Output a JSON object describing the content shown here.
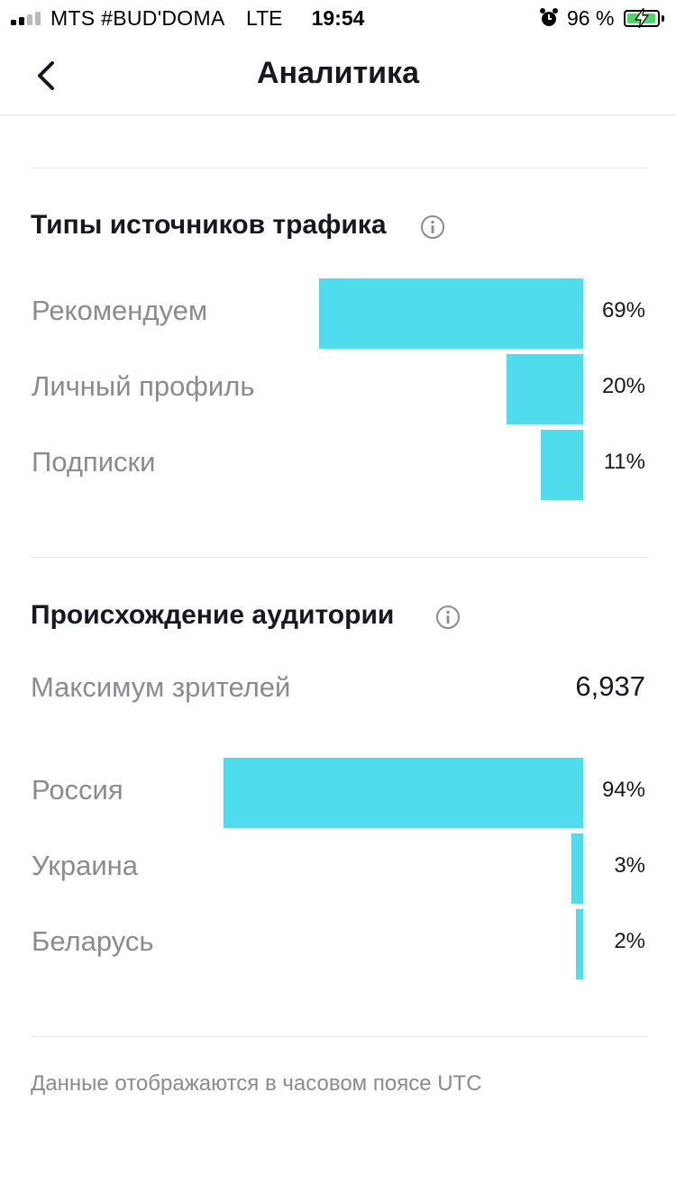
{
  "status_bar": {
    "carrier": "MTS #BUD'DOMA",
    "network": "LTE",
    "time": "19:54",
    "battery_percent": "96 %",
    "battery_level": 0.96,
    "icons": [
      "signal-icon",
      "alarm-icon",
      "battery-charging-icon"
    ]
  },
  "nav": {
    "title": "Аналитика",
    "back_icon": "chevron-left-icon"
  },
  "traffic": {
    "title": "Типы источников трафика",
    "info_icon": "info-icon"
  },
  "audience": {
    "title": "Происхождение аудитории",
    "info_icon": "info-icon",
    "max_viewers_label": "Максимум зрителей",
    "max_viewers_value": "6,937"
  },
  "footnote": "Данные отображаются в часовом поясе UTC",
  "colors": {
    "bar": "#4fdded",
    "text_primary": "#161823",
    "text_secondary": "#8a8b91"
  },
  "chart_data": [
    {
      "type": "bar",
      "orientation": "horizontal",
      "title": "Типы источников трафика",
      "categories": [
        "Рекомендуем",
        "Личный профиль",
        "Подписки"
      ],
      "values": [
        69,
        20,
        11
      ],
      "labels": [
        "69%",
        "20%",
        "11%"
      ],
      "unit": "%"
    },
    {
      "type": "bar",
      "orientation": "horizontal",
      "title": "Происхождение аудитории",
      "categories": [
        "Россия",
        "Украина",
        "Беларусь"
      ],
      "values": [
        94,
        3,
        2
      ],
      "labels": [
        "94%",
        "3%",
        "2%"
      ],
      "unit": "%"
    }
  ]
}
